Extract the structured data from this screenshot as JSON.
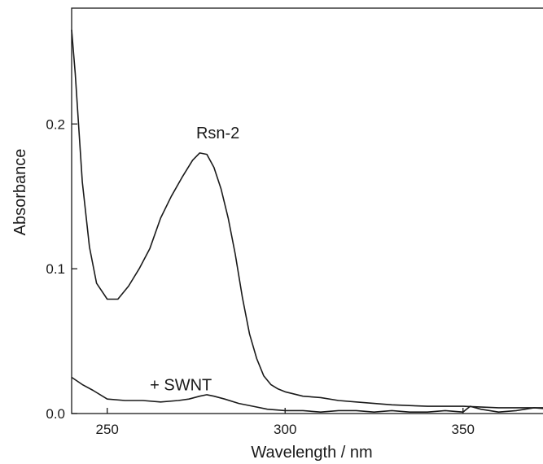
{
  "chart_data": {
    "type": "line",
    "title": "",
    "xlabel": "Wavelength / nm",
    "ylabel": "Absorbance",
    "xlim": [
      240,
      375
    ],
    "ylim": [
      0,
      0.28
    ],
    "xticks": [
      250,
      300,
      350
    ],
    "xtick_labels": [
      "250",
      "300",
      "350"
    ],
    "yticks": [
      0,
      0.1,
      0.2
    ],
    "ytick_labels": [
      "0.0",
      "0.1",
      "0.2"
    ],
    "grid": false,
    "line_color": "#1a1a1a",
    "annotations": [
      {
        "text": "Rsn-2",
        "x": 275,
        "y": 0.19
      },
      {
        "text": "+ SWNT",
        "x": 262,
        "y": 0.016
      }
    ],
    "series": [
      {
        "label": "Rsn-2",
        "x": [
          240,
          241,
          243,
          245,
          247,
          250,
          253,
          256,
          259,
          262,
          265,
          268,
          271,
          274,
          276,
          278,
          280,
          282,
          284,
          286,
          288,
          290,
          292,
          294,
          296,
          298,
          300,
          305,
          310,
          315,
          320,
          330,
          340,
          350,
          360,
          370,
          375
        ],
        "y": [
          0.265,
          0.235,
          0.16,
          0.115,
          0.09,
          0.079,
          0.079,
          0.088,
          0.1,
          0.114,
          0.135,
          0.15,
          0.163,
          0.175,
          0.18,
          0.179,
          0.17,
          0.155,
          0.135,
          0.11,
          0.08,
          0.055,
          0.038,
          0.026,
          0.02,
          0.017,
          0.015,
          0.012,
          0.011,
          0.009,
          0.008,
          0.006,
          0.005,
          0.005,
          0.004,
          0.004,
          0.004
        ]
      },
      {
        "label": "+ SWNT",
        "x": [
          240,
          243,
          246,
          250,
          255,
          260,
          265,
          270,
          273,
          276,
          278,
          280,
          283,
          287,
          291,
          295,
          300,
          305,
          310,
          315,
          320,
          325,
          330,
          335,
          340,
          345,
          350,
          352,
          355,
          360,
          365,
          370,
          375
        ],
        "y": [
          0.025,
          0.02,
          0.016,
          0.01,
          0.009,
          0.009,
          0.008,
          0.009,
          0.01,
          0.012,
          0.013,
          0.012,
          0.01,
          0.007,
          0.005,
          0.003,
          0.002,
          0.002,
          0.001,
          0.002,
          0.002,
          0.001,
          0.002,
          0.001,
          0.001,
          0.002,
          0.001,
          0.005,
          0.003,
          0.001,
          0.002,
          0.004,
          0.003
        ]
      }
    ]
  }
}
